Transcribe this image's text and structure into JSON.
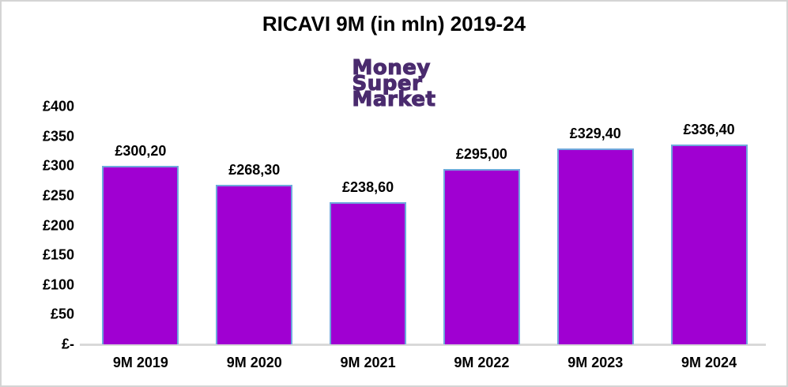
{
  "window": {
    "background": "#ffffff",
    "border_color": "#d4d4d4"
  },
  "logo": {
    "lines": [
      "Money",
      "Super",
      "Market"
    ],
    "color": "#4a2b6e"
  },
  "chart_data": {
    "type": "bar",
    "title": "RICAVI 9M (in mln) 2019-24",
    "categories": [
      "9M 2019",
      "9M 2020",
      "9M 2021",
      "9M 2022",
      "9M 2023",
      "9M 2024"
    ],
    "values": [
      300.2,
      268.3,
      238.6,
      295.0,
      329.4,
      336.4
    ],
    "data_labels": [
      "£300,20",
      "£268,30",
      "£238,60",
      "£295,00",
      "£329,40",
      "£336,40"
    ],
    "xlabel": "",
    "ylabel": "",
    "ylim": [
      0,
      400
    ],
    "ytick_values": [
      400,
      350,
      300,
      250,
      200,
      150,
      100,
      50,
      0
    ],
    "ytick_labels": [
      "£400",
      "£350",
      "£300",
      "£250",
      "£200",
      "£150",
      "£100",
      "£50",
      "£-"
    ],
    "grid": false,
    "legend": "none",
    "bar_fill": "#a000d2",
    "bar_border": "#6fa8dc",
    "axis_line_color": "#d9d9d9",
    "label_color": "#000000"
  }
}
